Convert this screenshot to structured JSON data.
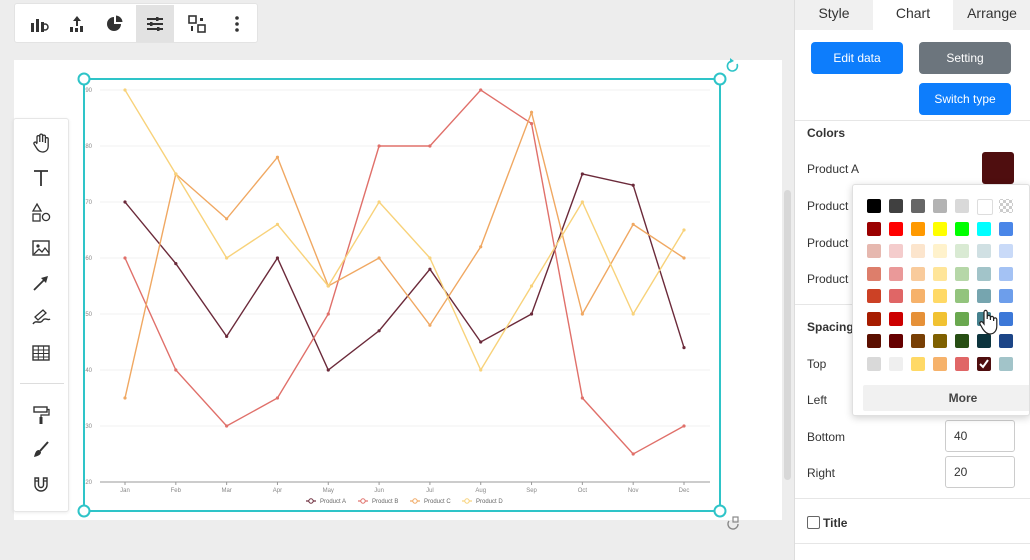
{
  "toolbar": {
    "items": [
      {
        "name": "chart-type-icon"
      },
      {
        "name": "chart-elements-icon"
      },
      {
        "name": "pie-chart-icon"
      },
      {
        "name": "filter-settings-icon",
        "active": true
      },
      {
        "name": "switch-chart-icon"
      },
      {
        "name": "more-options-icon"
      }
    ]
  },
  "left_tools": [
    "hand-tool-icon",
    "text-tool-icon",
    "shapes-tool-icon",
    "image-tool-icon",
    "arrow-tool-icon",
    "pen-tool-icon",
    "table-tool-icon",
    "paint-roller-icon",
    "brush-icon",
    "magnet-icon"
  ],
  "panel": {
    "tabs": [
      "Style",
      "Chart",
      "Arrange"
    ],
    "active_tab": "Chart",
    "buttons": {
      "edit_data": "Edit data",
      "setting": "Setting",
      "switch_type": "Switch type"
    },
    "colors_header": "Colors",
    "color_rows": [
      "Product A",
      "Product",
      "Product",
      "Product"
    ],
    "product_a_color": "#4f0e0f",
    "spacing_header": "Spacing",
    "spacing_labels": [
      "Top",
      "Left",
      "Bottom",
      "Right"
    ],
    "bottom_value": "40",
    "right_value": "20",
    "title_checkbox": "Title"
  },
  "color_picker": {
    "more_label": "More",
    "rows": [
      [
        "#000000",
        "#404040",
        "#666666",
        "#b3b3b3",
        "#d9d9d9",
        "#ffffff",
        "checker"
      ],
      [
        "#9a0000",
        "#ff0000",
        "#ff9900",
        "#ffff00",
        "#00ff00",
        "#00ffff",
        "#4a86e8"
      ],
      [
        "#e6b8af",
        "#f4cccc",
        "#fce5cd",
        "#fff2cc",
        "#d9ead3",
        "#d0e0e3",
        "#c9daf8"
      ],
      [
        "#dd7e6b",
        "#ea9999",
        "#f9cb9c",
        "#ffe599",
        "#b6d7a8",
        "#a2c4c9",
        "#a4c2f4"
      ],
      [
        "#cc4125",
        "#e06666",
        "#f6b26b",
        "#ffd966",
        "#93c47d",
        "#76a5af",
        "#6d9eeb"
      ],
      [
        "#a61c00",
        "#cc0000",
        "#e69138",
        "#f1c232",
        "#6aa84f",
        "#45818e",
        "#3c78d8"
      ],
      [
        "#5b0f00",
        "#660000",
        "#783f04",
        "#7f6000",
        "#274e13",
        "#0c343d",
        "#1c4587"
      ],
      [
        "#d9d9d9",
        "#efefef",
        "#ffd966",
        "#f6b26b",
        "#e06666",
        "#4f0e0f",
        "#a2c4c9"
      ]
    ]
  },
  "chart_data": {
    "type": "line",
    "categories": [
      "Jan",
      "Feb",
      "Mar",
      "Apr",
      "May",
      "Jun",
      "Jul",
      "Aug",
      "Sep",
      "Oct",
      "Nov",
      "Dec"
    ],
    "ylim": [
      20,
      90
    ],
    "yticks": [
      20,
      30,
      40,
      50,
      60,
      70,
      80,
      90
    ],
    "grid": true,
    "legend": "bottom",
    "series": [
      {
        "name": "Product A",
        "color": "#6b2a3a",
        "values": [
          70,
          59,
          46,
          60,
          40,
          47,
          58,
          45,
          50,
          75,
          73,
          44
        ]
      },
      {
        "name": "Product B",
        "color": "#e0706a",
        "values": [
          60,
          40,
          30,
          35,
          50,
          80,
          80,
          90,
          84,
          35,
          25,
          30
        ]
      },
      {
        "name": "Product C",
        "color": "#f0a862",
        "values": [
          35,
          75,
          67,
          78,
          55,
          60,
          48,
          62,
          86,
          50,
          66,
          60
        ]
      },
      {
        "name": "Product D",
        "color": "#f8d27a",
        "values": [
          90,
          75,
          60,
          66,
          55,
          70,
          60,
          40,
          55,
          70,
          50,
          65
        ]
      }
    ]
  }
}
